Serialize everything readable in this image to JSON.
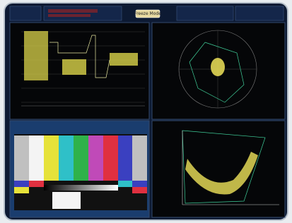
{
  "header": {
    "button": "Freeze Mode"
  }
}
